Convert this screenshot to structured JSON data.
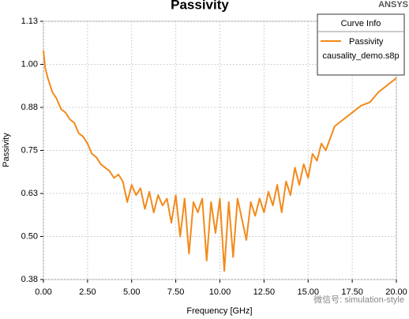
{
  "chart_data": {
    "type": "line",
    "title": "Passivity",
    "brand": "ANSYS",
    "x_label": "Frequency [GHz]",
    "y_label": "Passivity",
    "legend_title": "Curve Info",
    "legend_subtitle": "causality_demo.s8p",
    "watermark": "微信号: simulation-style",
    "x": [
      0,
      0.1,
      0.25,
      0.5,
      0.75,
      1,
      1.25,
      1.5,
      1.75,
      2,
      2.25,
      2.5,
      2.75,
      3,
      3.25,
      3.5,
      3.75,
      4,
      4.25,
      4.5,
      4.75,
      5,
      5.25,
      5.5,
      5.75,
      6,
      6.25,
      6.5,
      6.75,
      7,
      7.25,
      7.5,
      7.75,
      8,
      8.25,
      8.5,
      8.75,
      9,
      9.25,
      9.5,
      9.75,
      10,
      10.25,
      10.5,
      10.75,
      11,
      11.25,
      11.5,
      11.75,
      12,
      12.25,
      12.5,
      12.75,
      13,
      13.25,
      13.5,
      13.75,
      14,
      14.25,
      14.5,
      14.75,
      15,
      15.25,
      15.5,
      15.75,
      16,
      16.5,
      17,
      17.5,
      18,
      18.5,
      19,
      19.5,
      20
    ],
    "series": [
      {
        "name": "Passivity",
        "color": "#f28a1a",
        "values": [
          1.04,
          0.99,
          0.96,
          0.92,
          0.9,
          0.87,
          0.86,
          0.84,
          0.83,
          0.8,
          0.79,
          0.77,
          0.74,
          0.73,
          0.71,
          0.7,
          0.69,
          0.67,
          0.68,
          0.66,
          0.6,
          0.65,
          0.62,
          0.64,
          0.58,
          0.63,
          0.57,
          0.62,
          0.59,
          0.61,
          0.54,
          0.62,
          0.5,
          0.61,
          0.45,
          0.6,
          0.57,
          0.61,
          0.43,
          0.6,
          0.51,
          0.61,
          0.4,
          0.6,
          0.44,
          0.61,
          0.55,
          0.49,
          0.6,
          0.56,
          0.61,
          0.57,
          0.63,
          0.59,
          0.65,
          0.57,
          0.66,
          0.62,
          0.7,
          0.65,
          0.71,
          0.67,
          0.74,
          0.72,
          0.77,
          0.75,
          0.82,
          0.84,
          0.86,
          0.88,
          0.89,
          0.92,
          0.94,
          0.96
        ]
      }
    ],
    "xlim": [
      0,
      20
    ],
    "xticks": [
      {
        "value": 0,
        "label": "0.00"
      },
      {
        "value": 2.5,
        "label": "2.50"
      },
      {
        "value": 5,
        "label": "5.00"
      },
      {
        "value": 7.5,
        "label": "7.50"
      },
      {
        "value": 10,
        "label": "10.00"
      },
      {
        "value": 12.5,
        "label": "12.50"
      },
      {
        "value": 15,
        "label": "15.00"
      },
      {
        "value": 17.5,
        "label": "17.50"
      },
      {
        "value": 20,
        "label": "20.00"
      }
    ],
    "ylim": [
      0.375,
      1.125
    ],
    "yticks": [
      {
        "value": 0.375,
        "label": "0.38"
      },
      {
        "value": 0.5,
        "label": "0.50"
      },
      {
        "value": 0.625,
        "label": "0.63"
      },
      {
        "value": 0.75,
        "label": "0.75"
      },
      {
        "value": 0.875,
        "label": "0.88"
      },
      {
        "value": 1,
        "label": "1.00"
      },
      {
        "value": 1.125,
        "label": "1.13"
      }
    ],
    "grid": true
  }
}
